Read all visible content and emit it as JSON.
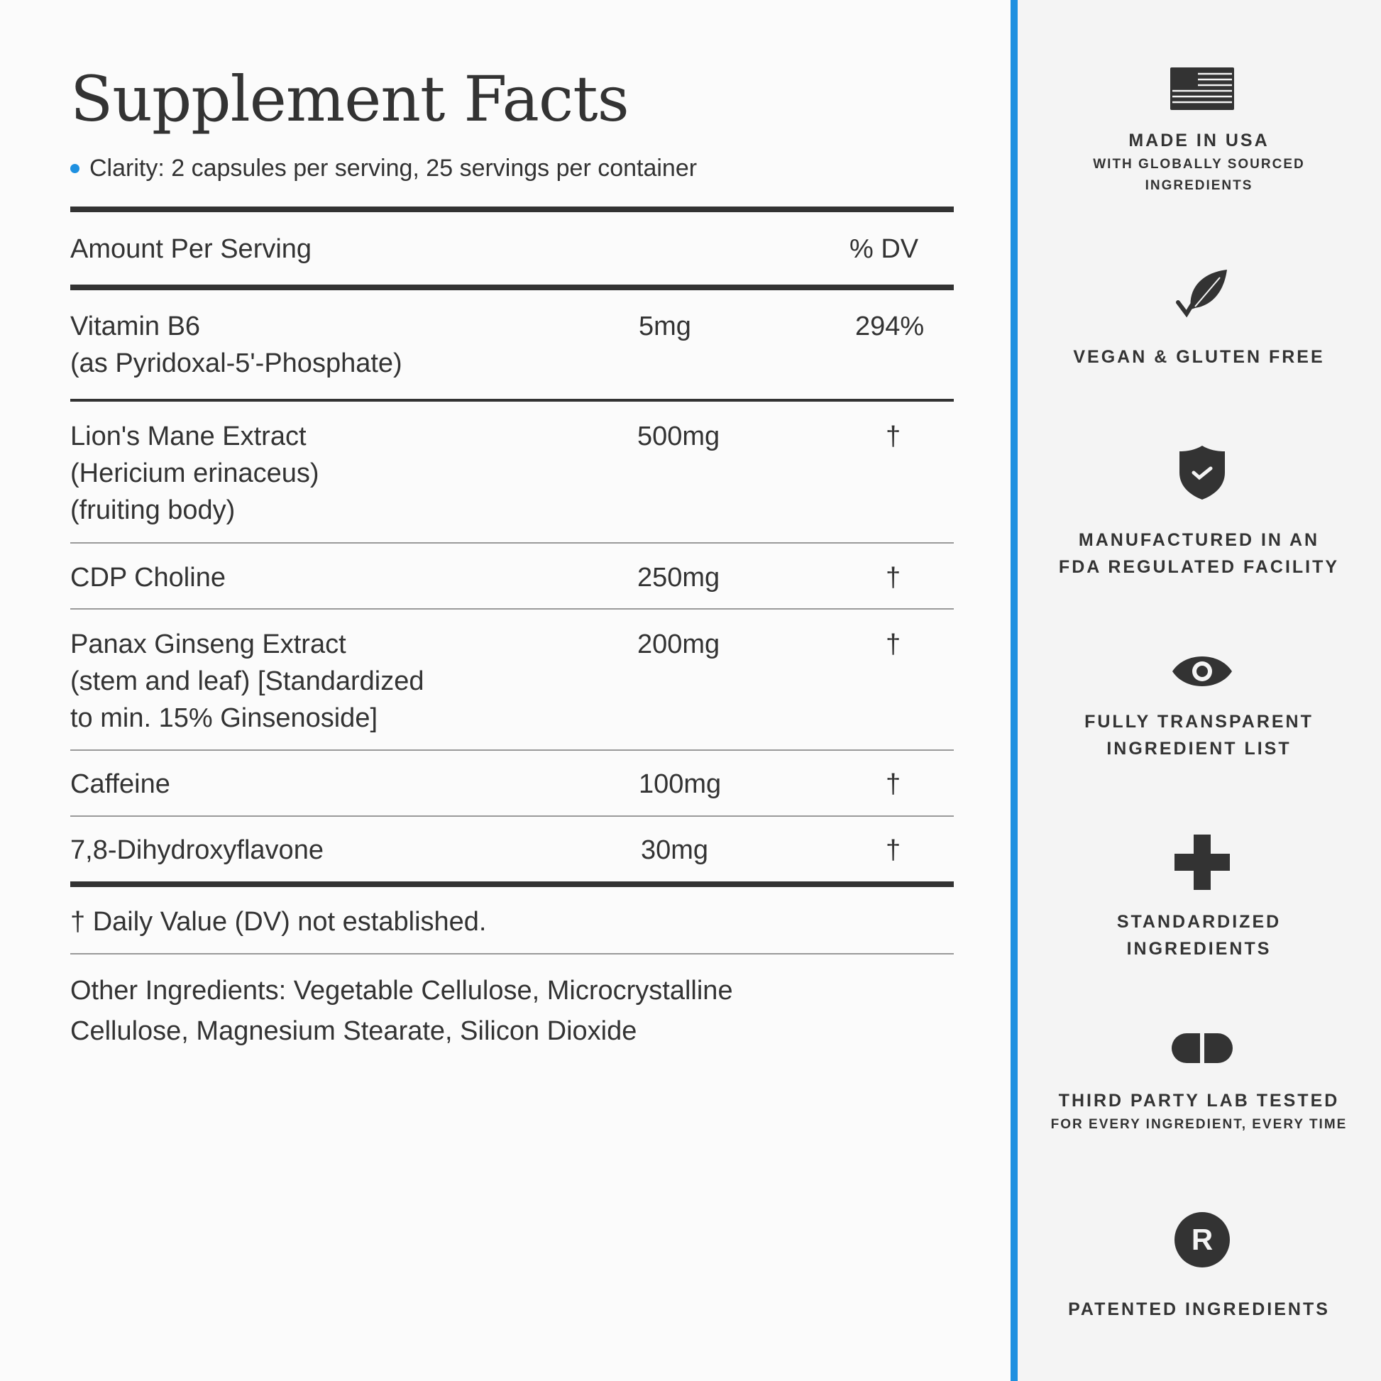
{
  "title": "Supplement Facts",
  "serving": "Clarity: 2 capsules per serving, 25 servings per container",
  "accent_color": "#1e90e0",
  "header": {
    "amount": "Amount Per Serving",
    "dv": "% DV"
  },
  "rows": [
    {
      "name": [
        "Vitamin B6",
        "(as Pyridoxal-5'-Phosphate)"
      ],
      "amount": "5mg",
      "dv": "294%"
    },
    {
      "name": [
        "Lion's Mane Extract",
        "(Hericium erinaceus)",
        "(fruiting body)"
      ],
      "amount": "500mg",
      "dv": "†"
    },
    {
      "name": [
        "CDP Choline"
      ],
      "amount": "250mg",
      "dv": "†"
    },
    {
      "name": [
        "Panax Ginseng Extract",
        "(stem and leaf) [Standardized",
        "to min. 15% Ginsenoside]"
      ],
      "amount": "200mg",
      "dv": "†"
    },
    {
      "name": [
        "Caffeine"
      ],
      "amount": "100mg",
      "dv": "†"
    },
    {
      "name": [
        "7,8-Dihydroxyflavone"
      ],
      "amount": "30mg",
      "dv": "†"
    }
  ],
  "footnote": "† Daily Value (DV) not established.",
  "other": [
    "Other Ingredients: Vegetable Cellulose, Microcrystalline",
    "Cellulose, Magnesium Stearate, Silicon Dioxide"
  ],
  "badges": [
    {
      "icon": "flag-icon",
      "title": "MADE IN USA",
      "lines": [
        "WITH GLOBALLY SOURCED",
        "INGREDIENTS"
      ]
    },
    {
      "icon": "leaf-check-icon",
      "title": "VEGAN & GLUTEN FREE",
      "lines": []
    },
    {
      "icon": "shield-check-icon",
      "title": "MANUFACTURED IN AN",
      "title2": "FDA REGULATED FACILITY",
      "lines": []
    },
    {
      "icon": "eye-icon",
      "title": "FULLY TRANSPARENT",
      "title2": "INGREDIENT LIST",
      "lines": []
    },
    {
      "icon": "plus-icon",
      "title": "STANDARDIZED",
      "title2": "INGREDIENTS",
      "lines": []
    },
    {
      "icon": "capsule-icon",
      "title": "THIRD PARTY LAB TESTED",
      "lines": [
        "FOR EVERY INGREDIENT, EVERY TIME"
      ]
    },
    {
      "icon": "registered-icon",
      "title": "PATENTED INGREDIENTS",
      "lines": []
    }
  ]
}
